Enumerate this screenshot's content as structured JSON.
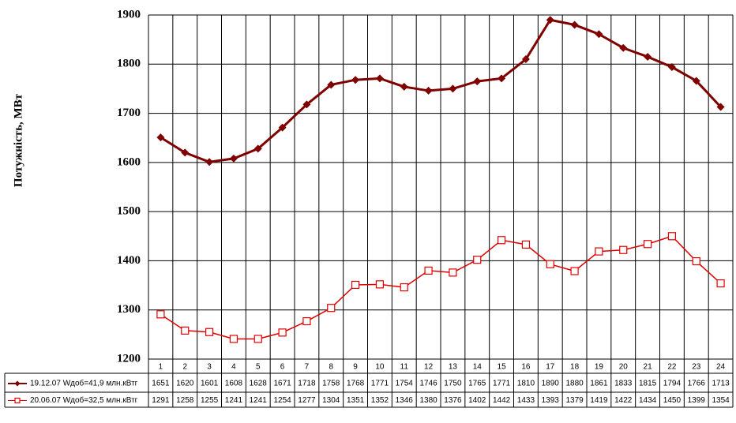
{
  "chart_data": {
    "type": "line",
    "y_label": "Потужність, МВт",
    "categories": [
      "1",
      "2",
      "3",
      "4",
      "5",
      "6",
      "7",
      "8",
      "9",
      "10",
      "11",
      "12",
      "13",
      "14",
      "15",
      "16",
      "17",
      "18",
      "19",
      "20",
      "21",
      "22",
      "23",
      "24"
    ],
    "series": [
      {
        "name": "19.12.07 Wдоб=41,9 млн.кВтг",
        "color": "#800000",
        "marker": "diamond",
        "values": [
          1651,
          1620,
          1601,
          1608,
          1628,
          1671,
          1718,
          1758,
          1768,
          1771,
          1754,
          1746,
          1750,
          1765,
          1771,
          1810,
          1890,
          1880,
          1861,
          1833,
          1815,
          1794,
          1766,
          1713
        ]
      },
      {
        "name": "20.06.07 Wдоб=32,5 млн.кВтг",
        "color": "#e00000",
        "marker": "square",
        "values": [
          1291,
          1258,
          1255,
          1241,
          1241,
          1254,
          1277,
          1304,
          1351,
          1352,
          1346,
          1380,
          1376,
          1402,
          1442,
          1433,
          1393,
          1379,
          1419,
          1422,
          1434,
          1450,
          1399,
          1354
        ]
      }
    ],
    "ylim": [
      1200,
      1900
    ],
    "yticks": [
      1200,
      1300,
      1400,
      1500,
      1600,
      1700,
      1800,
      1900
    ],
    "grid": true,
    "data_table": true
  }
}
